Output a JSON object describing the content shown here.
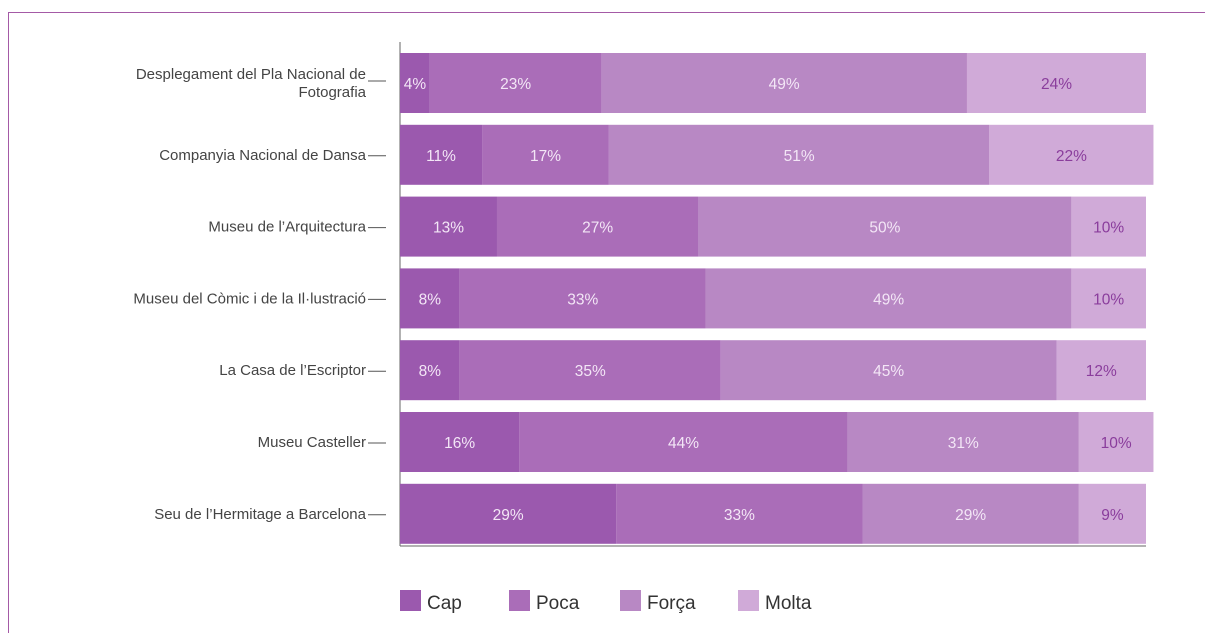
{
  "chart_data": {
    "type": "bar",
    "orientation": "horizontal",
    "stacked": true,
    "unit": "%",
    "categories": [
      [
        "Desplegament del Pla Nacional de",
        "Fotografia"
      ],
      [
        "Companyia Nacional de Dansa"
      ],
      [
        "Museu de l’Arquitectura"
      ],
      [
        "Museu del Còmic i de la Il·lustració"
      ],
      [
        "La Casa de l’Escriptor"
      ],
      [
        "Museu Casteller"
      ],
      [
        "Seu de l’Hermitage a Barcelona"
      ]
    ],
    "series": [
      {
        "name": "Cap",
        "color": "#9b59ae",
        "label_color": "#f3e6f6",
        "values": [
          4,
          11,
          13,
          8,
          8,
          16,
          29
        ]
      },
      {
        "name": "Poca",
        "color": "#aa6db8",
        "label_color": "#f3e6f6",
        "values": [
          23,
          17,
          27,
          33,
          35,
          44,
          33
        ]
      },
      {
        "name": "Força",
        "color": "#b888c4",
        "label_color": "#f3e6f6",
        "values": [
          49,
          51,
          50,
          49,
          45,
          31,
          29
        ]
      },
      {
        "name": "Molta",
        "color": "#d0aad8",
        "label_color": "#8a3d9c",
        "values": [
          24,
          22,
          10,
          10,
          12,
          10,
          9
        ]
      }
    ],
    "xlim": [
      0,
      100
    ],
    "grid": false,
    "legend_position": "bottom"
  }
}
